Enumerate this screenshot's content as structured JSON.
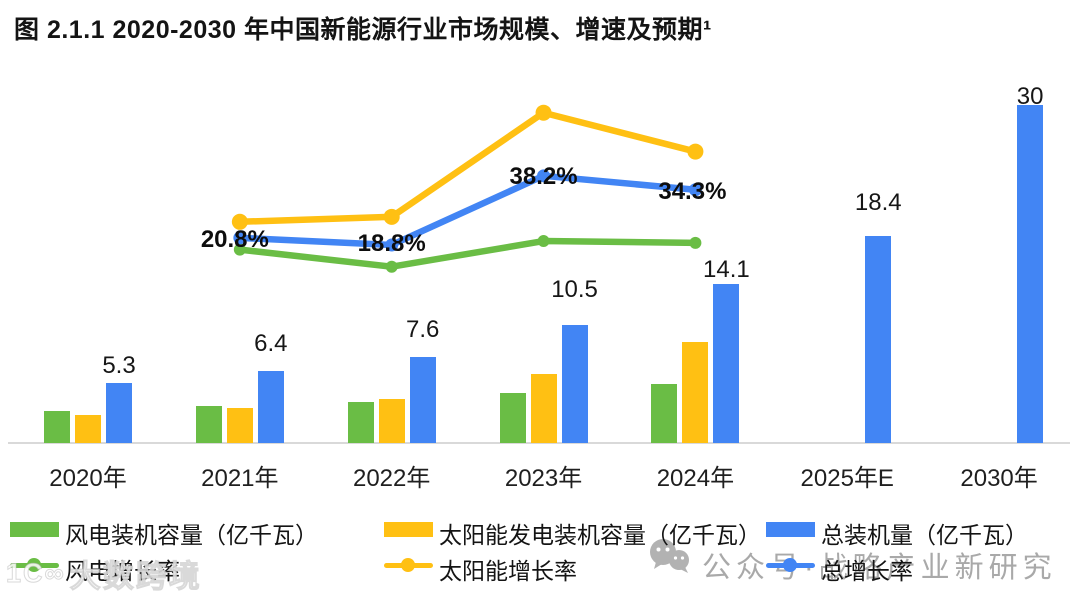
{
  "title": "图 2.1.1 2020-2030 年中国新能源行业市场规模、增速及预期¹",
  "colors": {
    "wind_green": "#6ABD45",
    "solar_yellow": "#FFC013",
    "total_blue": "#4285F4",
    "axis_gray": "#D9D9D9",
    "text_black": "#141414",
    "watermark_gray": "#9B9B9B"
  },
  "chart_data": {
    "type": "bar",
    "subtype": "grouped bars with growth-rate lines (combo)",
    "categories": [
      "2020年",
      "2021年",
      "2022年",
      "2023年",
      "2024年",
      "2025年E",
      "2030年"
    ],
    "bar_series": [
      {
        "key": "wind",
        "name": "风电装机容量（亿千瓦）",
        "color_key": "wind_green",
        "values": [
          2.8,
          3.3,
          3.6,
          4.4,
          5.2,
          null,
          null
        ]
      },
      {
        "key": "solar",
        "name": "太阳能发电装机容量（亿千瓦）",
        "color_key": "solar_yellow",
        "values": [
          2.5,
          3.1,
          3.9,
          6.1,
          9.0,
          null,
          null
        ]
      },
      {
        "key": "total",
        "name": "总装机量（亿千瓦）",
        "color_key": "total_blue",
        "values": [
          5.3,
          6.4,
          7.6,
          10.5,
          14.1,
          18.4,
          30
        ],
        "data_labels": [
          "5.3",
          "6.4",
          "7.6",
          "10.5",
          "14.1",
          "18.4",
          "30"
        ]
      }
    ],
    "line_series": [
      {
        "key": "wind_growth",
        "name": "风电增长率",
        "color_key": "wind_green",
        "unit": "%",
        "values": [
          null,
          17.5,
          12.7,
          19.9,
          19.4,
          null,
          null
        ],
        "point_labels": [
          null,
          null,
          null,
          null,
          null,
          null,
          null
        ]
      },
      {
        "key": "solar_growth",
        "name": "太阳能增长率",
        "color_key": "solar_yellow",
        "unit": "%",
        "values": [
          null,
          25.3,
          26.7,
          55.9,
          45.0,
          null,
          null
        ],
        "point_labels": [
          null,
          null,
          null,
          null,
          null,
          null,
          null
        ]
      },
      {
        "key": "total_growth",
        "name": "总增长率",
        "color_key": "total_blue",
        "unit": "%",
        "values": [
          null,
          20.8,
          18.8,
          38.2,
          34.3,
          null,
          null
        ],
        "point_labels": [
          null,
          "20.8%",
          "18.8%",
          "38.2%",
          "34.3%",
          null,
          null
        ]
      }
    ],
    "axis": {
      "y_axis_visible": false,
      "gridlines": false,
      "baseline_visible": true,
      "value_unit": "亿千瓦",
      "rate_unit": "%"
    }
  },
  "legend": {
    "items": [
      {
        "label": "风电装机容量（亿千瓦）",
        "marker": "bar",
        "color_key": "wind_green"
      },
      {
        "label": "太阳能发电装机容量（亿千瓦）",
        "marker": "bar",
        "color_key": "solar_yellow"
      },
      {
        "label": "总装机量（亿千瓦）",
        "marker": "bar",
        "color_key": "total_blue"
      },
      {
        "label": "风电增长率",
        "marker": "line",
        "color_key": "wind_green"
      },
      {
        "label": "太阳能增长率",
        "marker": "line",
        "color_key": "solar_yellow"
      },
      {
        "label": "总增长率",
        "marker": "line",
        "color_key": "total_blue"
      }
    ]
  },
  "watermarks": {
    "wechat_text": "公众号·战略产业新研究",
    "corner_logo_glyph": "1С∞",
    "corner_logo_text": "大数跨境"
  }
}
